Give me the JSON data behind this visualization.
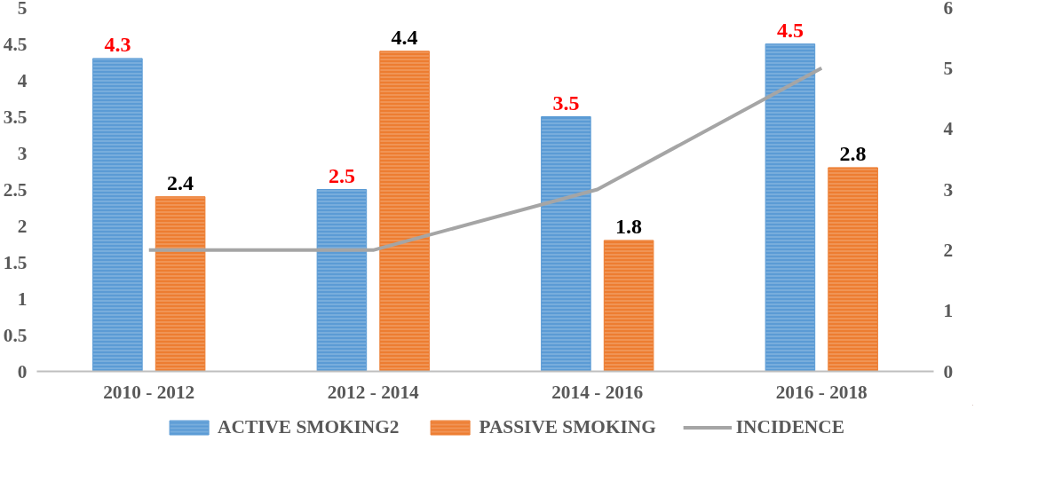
{
  "chart_data": {
    "type": "bar",
    "categories": [
      "2010 - 2012",
      "2012 - 2014",
      "2014 - 2016",
      "2016 - 2018"
    ],
    "series": [
      {
        "name": "ACTIVE SMOKING2",
        "color": "#5b9bd5",
        "values": [
          4.3,
          2.5,
          3.5,
          4.5
        ],
        "value_labels": [
          "4.3",
          "2.5",
          "3.5",
          "4.5"
        ]
      },
      {
        "name": "PASSIVE SMOKING",
        "color": "#ed7d31",
        "values": [
          2.4,
          4.4,
          1.8,
          2.8
        ],
        "value_labels": [
          "2.4",
          "4.4",
          "1.8",
          "2.8"
        ]
      },
      {
        "name": "INCIDENCE",
        "type": "line",
        "axis": "y2",
        "color": "#a5a5a5",
        "values": [
          2,
          2,
          3,
          5
        ]
      }
    ],
    "ylim": [
      0,
      5
    ],
    "yticks": [
      0,
      0.5,
      1,
      1.5,
      2,
      2.5,
      3,
      3.5,
      4,
      4.5,
      5
    ],
    "y2lim": [
      0,
      6
    ],
    "y2ticks": [
      0,
      1,
      2,
      3,
      4,
      5,
      6
    ],
    "grid": false,
    "legend": "bottom",
    "marker": "none"
  }
}
